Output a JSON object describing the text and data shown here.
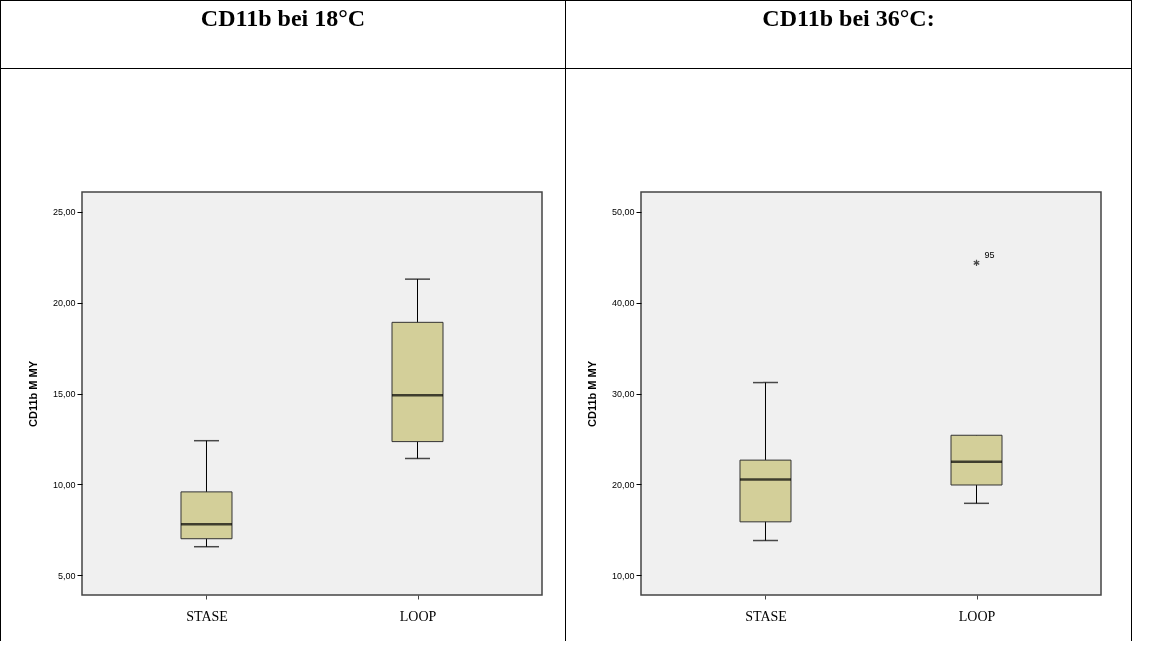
{
  "chart_data": [
    {
      "type": "box",
      "title": "CD11b bei 18°C",
      "ylabel": "CD11b M MY",
      "categories": [
        "STASE",
        "LOOP"
      ],
      "color": "#d3cf99",
      "ylim": [
        3.9,
        26.1
      ],
      "yticks": [
        {
          "value": 5,
          "label": "5,00"
        },
        {
          "value": 10,
          "label": "10,00"
        },
        {
          "value": 15,
          "label": "15,00"
        },
        {
          "value": 20,
          "label": "20,00"
        },
        {
          "value": 25,
          "label": "25,00"
        }
      ],
      "boxes": [
        {
          "low": 6.56,
          "q1": 7.0,
          "median": 7.8,
          "q3": 9.58,
          "high": 12.4
        },
        {
          "low": 11.42,
          "q1": 12.35,
          "median": 14.91,
          "q3": 18.92,
          "high": 21.3
        }
      ]
    },
    {
      "type": "box",
      "title": "CD11b bei 36°C:",
      "ylabel": "CD11b M MY",
      "categories": [
        "STASE",
        "LOOP"
      ],
      "color": "#d3cf99",
      "ylim": [
        7.8,
        52.2
      ],
      "yticks": [
        {
          "value": 10,
          "label": "10,00"
        },
        {
          "value": 20,
          "label": "20,00"
        },
        {
          "value": 30,
          "label": "30,00"
        },
        {
          "value": 40,
          "label": "40,00"
        },
        {
          "value": 50,
          "label": "50,00"
        }
      ],
      "boxes": [
        {
          "low": 13.8,
          "q1": 15.86,
          "median": 20.53,
          "q3": 22.66,
          "high": 31.2
        },
        {
          "low": 17.9,
          "q1": 19.92,
          "median": 22.47,
          "q3": 25.4,
          "high": 25.4,
          "outliers": [
            44.4
          ]
        }
      ],
      "annotations": [
        "95"
      ]
    }
  ]
}
